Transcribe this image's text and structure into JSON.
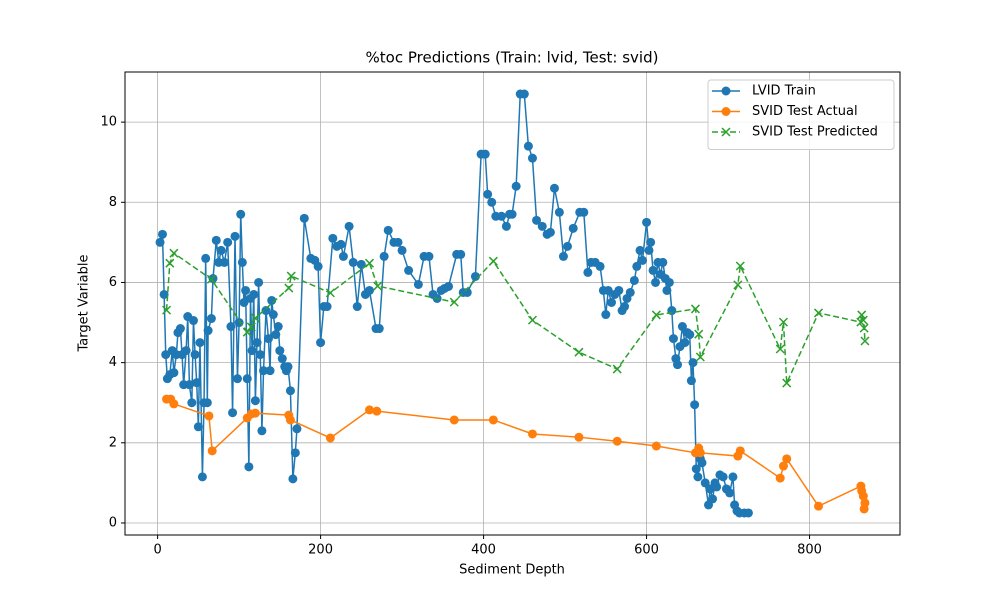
{
  "chart_data": {
    "type": "line",
    "title": "%toc Predictions (Train: lvid, Test: svid)",
    "x_label": "Sediment Depth",
    "y_label": "Target Variable",
    "xlim": [
      -40,
      911
    ],
    "ylim": [
      -0.3,
      11.25
    ],
    "xticks": [
      0,
      200,
      400,
      600,
      800
    ],
    "yticks": [
      0,
      2,
      4,
      6,
      8,
      10
    ],
    "grid": true,
    "legend": "upper right",
    "series": [
      {
        "name": "LVID Train",
        "color": "#1f77b4",
        "marker": "o",
        "dashed": false,
        "x": [
          3,
          6,
          8,
          10,
          12,
          15,
          18,
          20,
          23,
          25,
          28,
          30,
          32,
          35,
          37,
          39,
          42,
          44,
          46,
          48,
          50,
          52,
          55,
          57,
          59,
          61,
          62,
          66,
          68,
          72,
          75,
          78,
          82,
          86,
          90,
          92,
          95,
          98,
          100,
          102,
          104,
          106,
          108,
          110,
          112,
          114,
          116,
          118,
          120,
          122,
          124,
          126,
          128,
          130,
          133,
          136,
          138,
          140,
          142,
          145,
          148,
          150,
          153,
          156,
          158,
          160,
          163,
          166,
          169,
          171,
          180,
          188,
          193,
          197,
          200,
          204,
          208,
          215,
          220,
          225,
          228,
          235,
          240,
          245,
          250,
          255,
          260,
          268,
          272,
          278,
          283,
          290,
          295,
          300,
          308,
          320,
          327,
          333,
          338,
          343,
          348,
          352,
          357,
          367,
          372,
          375,
          380,
          390,
          397,
          402,
          405,
          410,
          415,
          422,
          428,
          432,
          435,
          440,
          445,
          450,
          455,
          460,
          465,
          472,
          478,
          482,
          487,
          493,
          498,
          503,
          510,
          518,
          523,
          528,
          532,
          537,
          543,
          547,
          550,
          553,
          557,
          561,
          566,
          570,
          573,
          576,
          580,
          585,
          588,
          592,
          595,
          600,
          603,
          605,
          608,
          611,
          614,
          617,
          620,
          623,
          625,
          628,
          631,
          633,
          636,
          638,
          641,
          644,
          647,
          650,
          653,
          655,
          657,
          659,
          661,
          663,
          666,
          668,
          672,
          676,
          678,
          681,
          684,
          686,
          690,
          694,
          698,
          702,
          706,
          708,
          711,
          714,
          720,
          725
        ],
        "values": [
          7.0,
          7.2,
          5.7,
          4.2,
          3.6,
          3.7,
          4.3,
          3.75,
          4.2,
          4.75,
          4.85,
          4.2,
          3.45,
          4.3,
          5.15,
          3.45,
          3.0,
          5.05,
          4.2,
          3.5,
          2.4,
          4.5,
          1.15,
          3.0,
          6.6,
          3.0,
          4.8,
          5.1,
          6.1,
          7.05,
          6.5,
          6.8,
          6.5,
          7.0,
          4.9,
          2.75,
          7.15,
          3.6,
          5.0,
          7.7,
          6.5,
          5.5,
          5.8,
          3.6,
          1.4,
          5.6,
          4.3,
          5.7,
          3.05,
          4.5,
          6.0,
          4.2,
          2.3,
          3.8,
          5.3,
          4.6,
          3.8,
          5.55,
          5.2,
          4.7,
          4.9,
          4.3,
          4.1,
          3.9,
          3.8,
          3.9,
          3.3,
          1.1,
          1.75,
          2.35,
          7.6,
          6.6,
          6.55,
          6.4,
          4.5,
          5.4,
          5.4,
          7.1,
          6.9,
          6.95,
          6.65,
          7.4,
          6.5,
          5.4,
          6.45,
          5.7,
          5.8,
          4.85,
          4.85,
          6.65,
          7.3,
          7.0,
          7.0,
          6.8,
          6.3,
          5.95,
          6.65,
          6.65,
          5.7,
          5.6,
          5.8,
          5.85,
          5.9,
          6.7,
          6.7,
          5.75,
          5.75,
          6.15,
          9.2,
          9.2,
          8.2,
          8.0,
          7.65,
          7.65,
          7.4,
          7.7,
          7.7,
          8.4,
          10.7,
          10.7,
          9.4,
          9.1,
          7.55,
          7.4,
          7.2,
          7.25,
          8.35,
          7.75,
          6.65,
          6.9,
          7.35,
          7.75,
          7.75,
          6.25,
          6.5,
          6.5,
          6.4,
          5.8,
          5.2,
          5.8,
          5.5,
          5.7,
          5.8,
          5.3,
          5.4,
          5.6,
          5.75,
          6.05,
          6.4,
          6.8,
          6.55,
          7.5,
          6.8,
          7.0,
          6.3,
          6.0,
          6.5,
          6.2,
          6.5,
          6.1,
          5.8,
          6.0,
          5.3,
          4.6,
          4.1,
          3.95,
          4.4,
          4.9,
          4.5,
          4.75,
          4.7,
          3.55,
          4.0,
          2.95,
          1.35,
          1.15,
          1.6,
          1.5,
          1.0,
          0.45,
          0.85,
          0.6,
          1.0,
          0.9,
          1.2,
          1.15,
          0.85,
          0.75,
          1.15,
          0.45,
          0.3,
          0.25,
          0.25,
          0.25
        ]
      },
      {
        "name": "SVID Test Actual",
        "color": "#ff7f0e",
        "marker": "o",
        "dashed": false,
        "x": [
          11,
          16,
          20,
          63,
          67,
          110,
          115,
          120,
          161,
          163,
          212,
          260,
          269,
          364,
          412,
          460,
          517,
          564,
          612,
          660,
          664,
          666,
          712,
          715,
          764,
          768,
          772,
          811,
          863,
          864,
          866,
          867,
          868
        ],
        "values": [
          3.09,
          3.09,
          2.97,
          2.67,
          1.8,
          2.62,
          2.72,
          2.74,
          2.69,
          2.57,
          2.12,
          2.82,
          2.79,
          2.57,
          2.57,
          2.22,
          2.14,
          2.04,
          1.92,
          1.75,
          1.87,
          1.75,
          1.67,
          1.8,
          1.12,
          1.42,
          1.6,
          0.42,
          0.92,
          0.8,
          0.67,
          0.35,
          0.5
        ]
      },
      {
        "name": "SVID Test Predicted",
        "color": "#2ca02c",
        "marker": "x",
        "dashed": true,
        "x": [
          11,
          15,
          20,
          66,
          110,
          115,
          120,
          161,
          164,
          212,
          260,
          270,
          364,
          412,
          460,
          517,
          564,
          612,
          660,
          664,
          666,
          712,
          715,
          764,
          768,
          772,
          811,
          863,
          864,
          866,
          867,
          868
        ],
        "values": [
          5.31,
          6.48,
          6.73,
          6.08,
          4.76,
          4.89,
          5.11,
          5.86,
          6.16,
          5.74,
          6.48,
          5.91,
          5.51,
          6.53,
          5.06,
          4.26,
          3.84,
          5.19,
          5.34,
          4.71,
          4.14,
          5.94,
          6.41,
          4.34,
          5.01,
          3.49,
          5.24,
          5.01,
          5.19,
          5.06,
          4.86,
          4.54
        ]
      }
    ]
  }
}
